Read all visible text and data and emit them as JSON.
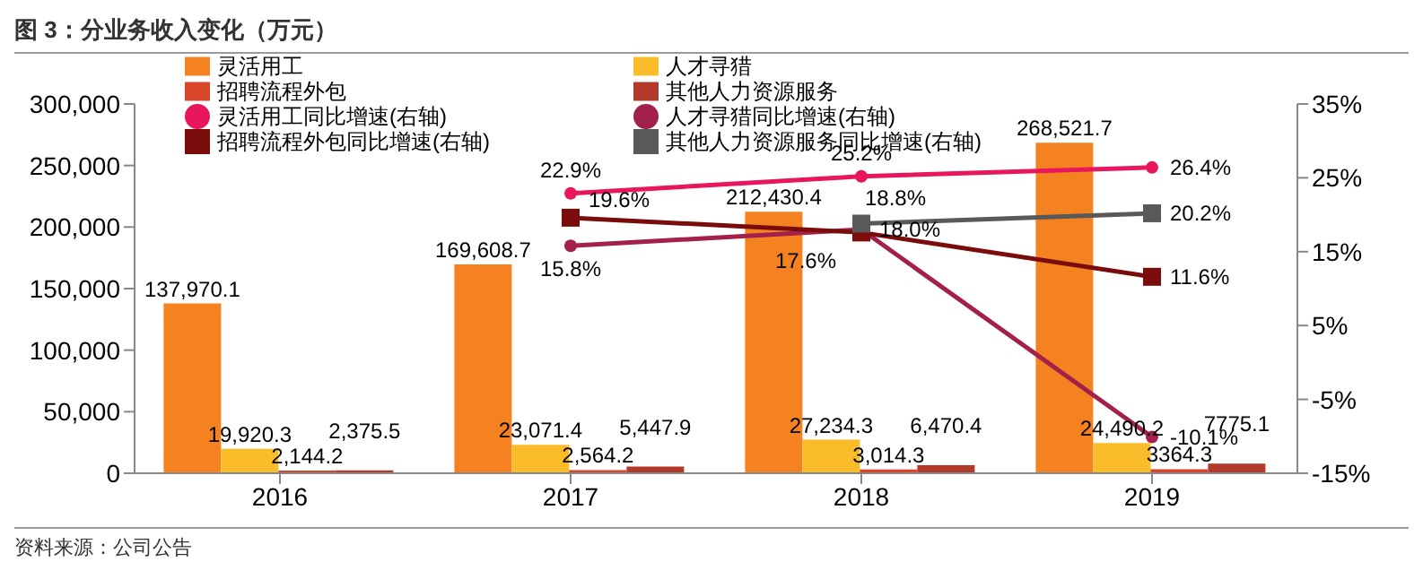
{
  "chart_data": {
    "type": "bar",
    "title": "图 3：分业务收入变化（万元）",
    "annotations": [
      "资料来源：公司公告"
    ],
    "categories": [
      "2016",
      "2017",
      "2018",
      "2019"
    ],
    "series": [
      {
        "name": "灵活用工",
        "color": "#f58220",
        "values": [
          137970.1,
          169608.7,
          212430.4,
          268521.7
        ],
        "value_labels": [
          "137,970.1",
          "169,608.7",
          "212,430.4",
          "268,521.7"
        ]
      },
      {
        "name": "人才寻猎",
        "color": "#fbbc2a",
        "values": [
          19920.3,
          23071.4,
          27234.3,
          24490.2
        ],
        "value_labels": [
          "19,920.3",
          "23,071.4",
          "27,234.3",
          "24,490.2"
        ]
      },
      {
        "name": "招聘流程外包",
        "color": "#d9462a",
        "values": [
          2144.2,
          2564.2,
          3014.3,
          3364.3
        ],
        "value_labels": [
          "2,144.2",
          "2,564.2",
          "3,014.3",
          "3364.3"
        ]
      },
      {
        "name": "其他人力资源服务",
        "color": "#b33a2a",
        "values": [
          2375.5,
          5447.9,
          6470.4,
          7775.1
        ],
        "value_labels": [
          "2,375.5",
          "5,447.9",
          "6,470.4",
          "7775.1"
        ]
      },
      {
        "name": "灵活用工同比增速(右轴)",
        "type": "line",
        "axis": "y2",
        "marker": "circle",
        "color": "#e8175d",
        "values": [
          null,
          22.9,
          25.2,
          26.4
        ],
        "value_labels": [
          null,
          "22.9%",
          "25.2%",
          "26.4%"
        ]
      },
      {
        "name": "人才寻猎同比增速(右轴)",
        "type": "line",
        "axis": "y2",
        "marker": "circle",
        "color": "#a3204a",
        "values": [
          null,
          15.8,
          18.0,
          -10.1
        ],
        "value_labels": [
          null,
          "15.8%",
          "18.0%",
          "-10.1%"
        ]
      },
      {
        "name": "招聘流程外包同比增速(右轴)",
        "type": "line",
        "axis": "y2",
        "marker": "square",
        "color": "#7a0c0c",
        "values": [
          null,
          19.6,
          17.6,
          11.6
        ],
        "value_labels": [
          null,
          "19.6%",
          "17.6%",
          "11.6%"
        ]
      },
      {
        "name": "其他人力资源服务同比增速(右轴)",
        "type": "line",
        "axis": "y2",
        "marker": "square",
        "color": "#595959",
        "values": [
          null,
          null,
          18.8,
          20.2
        ],
        "value_labels": [
          null,
          null,
          "18.8%",
          "20.2%"
        ]
      }
    ],
    "ylim": [
      0,
      300000
    ],
    "yticks": [
      {
        "value": 0,
        "label": "0"
      },
      {
        "value": 50000,
        "label": "50,000"
      },
      {
        "value": 100000,
        "label": "100,000"
      },
      {
        "value": 150000,
        "label": "150,000"
      },
      {
        "value": 200000,
        "label": "200,000"
      },
      {
        "value": 250000,
        "label": "250,000"
      },
      {
        "value": 300000,
        "label": "300,000"
      }
    ],
    "y2lim": [
      -15,
      35
    ],
    "y2ticks": [
      {
        "value": -15,
        "label": "-15%"
      },
      {
        "value": -5,
        "label": "-5%"
      },
      {
        "value": 5,
        "label": "5%"
      },
      {
        "value": 15,
        "label": "15%"
      },
      {
        "value": 25,
        "label": "25%"
      },
      {
        "value": 35,
        "label": "35%"
      }
    ],
    "legend": "top left",
    "grid": false
  }
}
